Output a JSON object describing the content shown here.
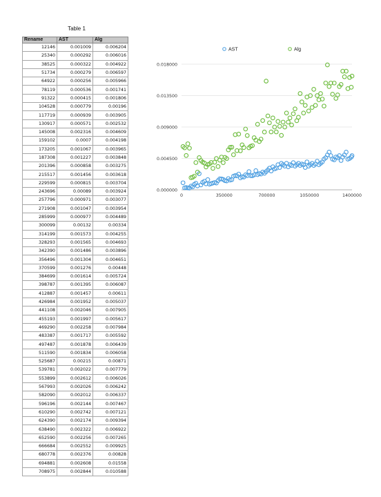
{
  "table": {
    "title": "Table 1",
    "headers": [
      "Rename",
      "AST",
      "Alg"
    ],
    "rows": [
      [
        "12146",
        "0.001009",
        "0.006204"
      ],
      [
        "25340",
        "0.000292",
        "0.006016"
      ],
      [
        "38525",
        "0.000322",
        "0.004922"
      ],
      [
        "51734",
        "0.000279",
        "0.006597"
      ],
      [
        "64922",
        "0.000256",
        "0.005966"
      ],
      [
        "78119",
        "0.000536",
        "0.001741"
      ],
      [
        "91322",
        "0.000415",
        "0.001806"
      ],
      [
        "104528",
        "0.000779",
        "0.00196"
      ],
      [
        "117719",
        "0.000939",
        "0.003905"
      ],
      [
        "130917",
        "0.000571",
        "0.002532"
      ],
      [
        "145008",
        "0.002316",
        "0.004609"
      ],
      [
        "159102",
        "0.0007",
        "0.004198"
      ],
      [
        "173205",
        "0.001067",
        "0.003965"
      ],
      [
        "187308",
        "0.001227",
        "0.003848"
      ],
      [
        "201396",
        "0.000858",
        "0.003275"
      ],
      [
        "215517",
        "0.001456",
        "0.003618"
      ],
      [
        "229599",
        "0.000815",
        "0.003704"
      ],
      [
        "243696",
        "0.00089",
        "0.003924"
      ],
      [
        "257796",
        "0.000971",
        "0.003077"
      ],
      [
        "271908",
        "0.001047",
        "0.003954"
      ],
      [
        "285999",
        "0.000977",
        "0.004489"
      ],
      [
        "300099",
        "0.00132",
        "0.00334"
      ],
      [
        "314199",
        "0.001573",
        "0.004255"
      ],
      [
        "328293",
        "0.001565",
        "0.004693"
      ],
      [
        "342390",
        "0.001486",
        "0.003896"
      ],
      [
        "356496",
        "0.001304",
        "0.004651"
      ],
      [
        "370599",
        "0.001276",
        "0.00448"
      ],
      [
        "384699",
        "0.001614",
        "0.005724"
      ],
      [
        "398787",
        "0.001395",
        "0.006087"
      ],
      [
        "412887",
        "0.001457",
        "0.00611"
      ],
      [
        "426984",
        "0.001952",
        "0.005037"
      ],
      [
        "441108",
        "0.002046",
        "0.007905"
      ],
      [
        "455193",
        "0.001997",
        "0.005617"
      ],
      [
        "469290",
        "0.002258",
        "0.007984"
      ],
      [
        "483387",
        "0.001717",
        "0.005592"
      ],
      [
        "497487",
        "0.001878",
        "0.006439"
      ],
      [
        "511590",
        "0.001834",
        "0.006058"
      ],
      [
        "525687",
        "0.00215",
        "0.00871"
      ],
      [
        "539781",
        "0.002022",
        "0.007779"
      ],
      [
        "553899",
        "0.002612",
        "0.006026"
      ],
      [
        "567993",
        "0.002026",
        "0.006242"
      ],
      [
        "582090",
        "0.002012",
        "0.006337"
      ],
      [
        "596196",
        "0.002144",
        "0.007467"
      ],
      [
        "610290",
        "0.002742",
        "0.007121"
      ],
      [
        "624390",
        "0.002174",
        "0.009394"
      ],
      [
        "638490",
        "0.002322",
        "0.006922"
      ],
      [
        "652590",
        "0.002256",
        "0.007265"
      ],
      [
        "666684",
        "0.002552",
        "0.009925"
      ],
      [
        "680778",
        "0.002376",
        "0.00828"
      ],
      [
        "694881",
        "0.002608",
        "0.01558"
      ],
      [
        "708975",
        "0.002844",
        "0.010588"
      ]
    ]
  },
  "chart_data": {
    "type": "scatter",
    "title": "",
    "xlabel": "",
    "ylabel": "",
    "xlim": [
      0,
      1400000
    ],
    "ylim": [
      0,
      0.018
    ],
    "x_ticks": [
      "0",
      "350000",
      "700000",
      "1050000",
      "1400000"
    ],
    "y_ticks": [
      "0.000000",
      "0.004500",
      "0.009000",
      "0.013500",
      "0.018000"
    ],
    "grid": true,
    "legend_position": "top",
    "series": [
      {
        "name": "AST",
        "color": "#4a9de0",
        "points": [
          [
            12146,
            0.001009
          ],
          [
            25340,
            0.000292
          ],
          [
            38525,
            0.000322
          ],
          [
            51734,
            0.000279
          ],
          [
            64922,
            0.000256
          ],
          [
            78119,
            0.000536
          ],
          [
            91322,
            0.000415
          ],
          [
            104528,
            0.000779
          ],
          [
            117719,
            0.000939
          ],
          [
            130917,
            0.000571
          ],
          [
            145008,
            0.002316
          ],
          [
            159102,
            0.0007
          ],
          [
            173205,
            0.001067
          ],
          [
            187308,
            0.001227
          ],
          [
            201396,
            0.000858
          ],
          [
            215517,
            0.001456
          ],
          [
            229599,
            0.000815
          ],
          [
            243696,
            0.00089
          ],
          [
            257796,
            0.000971
          ],
          [
            271908,
            0.001047
          ],
          [
            285999,
            0.000977
          ],
          [
            300099,
            0.00132
          ],
          [
            314199,
            0.001573
          ],
          [
            328293,
            0.001565
          ],
          [
            342390,
            0.001486
          ],
          [
            356496,
            0.001304
          ],
          [
            370599,
            0.001276
          ],
          [
            384699,
            0.001614
          ],
          [
            398787,
            0.001395
          ],
          [
            412887,
            0.001457
          ],
          [
            426984,
            0.001952
          ],
          [
            441108,
            0.002046
          ],
          [
            455193,
            0.001997
          ],
          [
            469290,
            0.002258
          ],
          [
            483387,
            0.001717
          ],
          [
            497487,
            0.001878
          ],
          [
            511590,
            0.001834
          ],
          [
            525687,
            0.00215
          ],
          [
            539781,
            0.002022
          ],
          [
            553899,
            0.002612
          ],
          [
            567993,
            0.002026
          ],
          [
            582090,
            0.002012
          ],
          [
            596196,
            0.002144
          ],
          [
            610290,
            0.002742
          ],
          [
            624390,
            0.002174
          ],
          [
            638490,
            0.002322
          ],
          [
            652590,
            0.002256
          ],
          [
            666684,
            0.002552
          ],
          [
            680778,
            0.002376
          ],
          [
            694881,
            0.002608
          ],
          [
            708975,
            0.002844
          ],
          [
            722000,
            0.0031
          ],
          [
            736000,
            0.0027
          ],
          [
            750000,
            0.0033
          ],
          [
            764000,
            0.003
          ],
          [
            778000,
            0.0031
          ],
          [
            792000,
            0.0036
          ],
          [
            806000,
            0.0032
          ],
          [
            820000,
            0.0038
          ],
          [
            834000,
            0.0036
          ],
          [
            848000,
            0.0034
          ],
          [
            862000,
            0.0038
          ],
          [
            876000,
            0.0033
          ],
          [
            890000,
            0.0036
          ],
          [
            904000,
            0.0035
          ],
          [
            918000,
            0.0039
          ],
          [
            932000,
            0.0034
          ],
          [
            946000,
            0.0036
          ],
          [
            960000,
            0.0038
          ],
          [
            974000,
            0.0035
          ],
          [
            988000,
            0.0037
          ],
          [
            1002000,
            0.0036
          ],
          [
            1016000,
            0.0032
          ],
          [
            1030000,
            0.004
          ],
          [
            1044000,
            0.0034
          ],
          [
            1058000,
            0.0036
          ],
          [
            1072000,
            0.0038
          ],
          [
            1086000,
            0.0035
          ],
          [
            1100000,
            0.0037
          ],
          [
            1114000,
            0.0041
          ],
          [
            1128000,
            0.0036
          ],
          [
            1142000,
            0.0038
          ],
          [
            1156000,
            0.004
          ],
          [
            1170000,
            0.0044
          ],
          [
            1184000,
            0.0046
          ],
          [
            1198000,
            0.005
          ],
          [
            1212000,
            0.0054
          ],
          [
            1226000,
            0.0049
          ],
          [
            1240000,
            0.0044
          ],
          [
            1254000,
            0.0043
          ],
          [
            1268000,
            0.0047
          ],
          [
            1282000,
            0.0046
          ],
          [
            1296000,
            0.0049
          ],
          [
            1310000,
            0.0042
          ],
          [
            1324000,
            0.0047
          ],
          [
            1338000,
            0.005
          ],
          [
            1352000,
            0.0054
          ],
          [
            1366000,
            0.0044
          ],
          [
            1380000,
            0.0045
          ],
          [
            1394000,
            0.0047
          ],
          [
            1400000,
            0.0049
          ]
        ]
      },
      {
        "name": "Alg",
        "color": "#6cbb3c",
        "points": [
          [
            12146,
            0.006204
          ],
          [
            25340,
            0.006016
          ],
          [
            38525,
            0.004922
          ],
          [
            51734,
            0.006597
          ],
          [
            64922,
            0.005966
          ],
          [
            78119,
            0.001741
          ],
          [
            91322,
            0.001806
          ],
          [
            104528,
            0.00196
          ],
          [
            117719,
            0.003905
          ],
          [
            130917,
            0.002532
          ],
          [
            145008,
            0.004609
          ],
          [
            159102,
            0.004198
          ],
          [
            173205,
            0.003965
          ],
          [
            187308,
            0.003848
          ],
          [
            201396,
            0.003275
          ],
          [
            215517,
            0.003618
          ],
          [
            229599,
            0.003704
          ],
          [
            243696,
            0.003924
          ],
          [
            257796,
            0.003077
          ],
          [
            271908,
            0.003954
          ],
          [
            285999,
            0.004489
          ],
          [
            300099,
            0.00334
          ],
          [
            314199,
            0.004255
          ],
          [
            328293,
            0.004693
          ],
          [
            342390,
            0.003896
          ],
          [
            356496,
            0.004651
          ],
          [
            370599,
            0.00448
          ],
          [
            384699,
            0.005724
          ],
          [
            398787,
            0.006087
          ],
          [
            412887,
            0.00611
          ],
          [
            426984,
            0.005037
          ],
          [
            441108,
            0.007905
          ],
          [
            455193,
            0.005617
          ],
          [
            469290,
            0.007984
          ],
          [
            483387,
            0.005592
          ],
          [
            497487,
            0.006439
          ],
          [
            511590,
            0.006058
          ],
          [
            525687,
            0.00871
          ],
          [
            539781,
            0.007779
          ],
          [
            553899,
            0.006026
          ],
          [
            567993,
            0.006242
          ],
          [
            582090,
            0.006337
          ],
          [
            596196,
            0.007467
          ],
          [
            610290,
            0.007121
          ],
          [
            624390,
            0.009394
          ],
          [
            638490,
            0.006922
          ],
          [
            652590,
            0.007265
          ],
          [
            666684,
            0.009925
          ],
          [
            680778,
            0.00828
          ],
          [
            694881,
            0.01558
          ],
          [
            708975,
            0.010588
          ],
          [
            722000,
            0.0096
          ],
          [
            736000,
            0.0083
          ],
          [
            750000,
            0.0103
          ],
          [
            764000,
            0.009
          ],
          [
            778000,
            0.0083
          ],
          [
            792000,
            0.0098
          ],
          [
            806000,
            0.0091
          ],
          [
            820000,
            0.0078
          ],
          [
            834000,
            0.0097
          ],
          [
            848000,
            0.009
          ],
          [
            862000,
            0.011
          ],
          [
            876000,
            0.0097
          ],
          [
            890000,
            0.0103
          ],
          [
            904000,
            0.0093
          ],
          [
            918000,
            0.0109
          ],
          [
            932000,
            0.0116
          ],
          [
            946000,
            0.0099
          ],
          [
            960000,
            0.0104
          ],
          [
            974000,
            0.0138
          ],
          [
            988000,
            0.0126
          ],
          [
            1002000,
            0.011
          ],
          [
            1016000,
            0.0121
          ],
          [
            1030000,
            0.0133
          ],
          [
            1044000,
            0.0113
          ],
          [
            1058000,
            0.0135
          ],
          [
            1072000,
            0.0118
          ],
          [
            1086000,
            0.0144
          ],
          [
            1100000,
            0.0121
          ],
          [
            1114000,
            0.0135
          ],
          [
            1128000,
            0.0129
          ],
          [
            1142000,
            0.0138
          ],
          [
            1156000,
            0.013
          ],
          [
            1170000,
            0.012
          ],
          [
            1184000,
            0.0153
          ],
          [
            1198000,
            0.0179
          ],
          [
            1212000,
            0.0148
          ],
          [
            1226000,
            0.0153
          ],
          [
            1240000,
            0.0137
          ],
          [
            1254000,
            0.0153
          ],
          [
            1268000,
            0.0131
          ],
          [
            1282000,
            0.0136
          ],
          [
            1296000,
            0.0148
          ],
          [
            1310000,
            0.0151
          ],
          [
            1324000,
            0.017
          ],
          [
            1338000,
            0.0162
          ],
          [
            1352000,
            0.017
          ],
          [
            1366000,
            0.0145
          ],
          [
            1380000,
            0.0161
          ],
          [
            1394000,
            0.0147
          ],
          [
            1400000,
            0.0163
          ]
        ]
      }
    ]
  }
}
